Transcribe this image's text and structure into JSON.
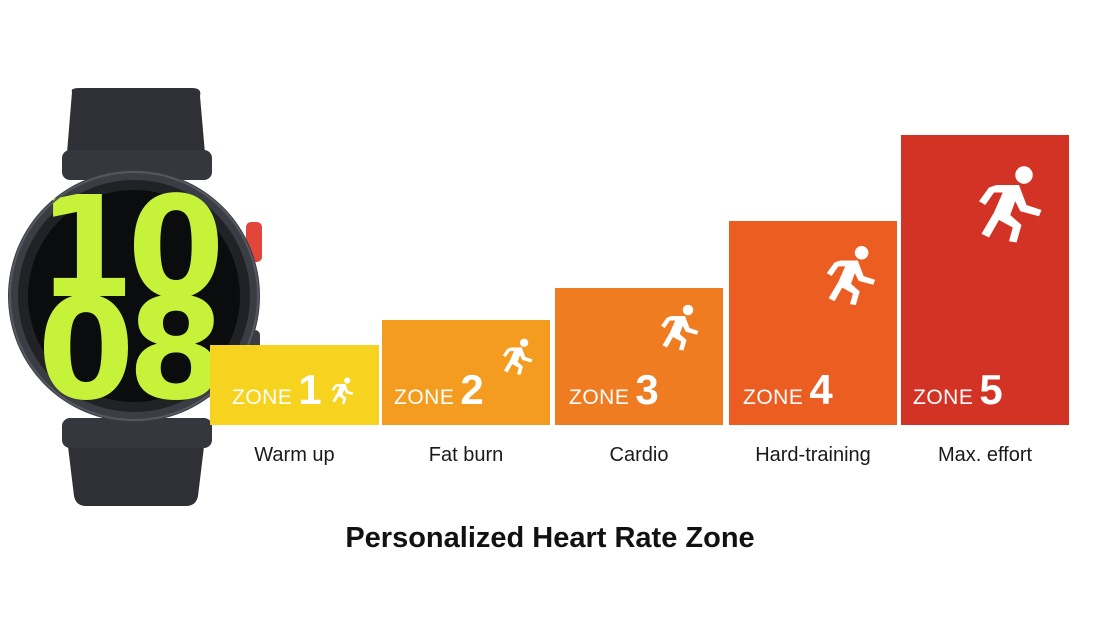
{
  "zones": [
    {
      "word": "ZONE",
      "number": "1",
      "name": "Warm up",
      "color": "#f5d31f",
      "level": 1
    },
    {
      "word": "ZONE",
      "number": "2",
      "name": "Fat burn",
      "color": "#f39c1f",
      "level": 2
    },
    {
      "word": "ZONE",
      "number": "3",
      "name": "Cardio",
      "color": "#f07c22",
      "level": 3
    },
    {
      "word": "ZONE",
      "number": "4",
      "name": "Hard-training",
      "color": "#ec5d22",
      "level": 4
    },
    {
      "word": "ZONE",
      "number": "5",
      "name": "Max. effort",
      "color": "#d33324",
      "level": 5
    }
  ],
  "title": "Personalized Heart Rate Zone",
  "watch": {
    "face_digits": [
      "1",
      "0",
      "0",
      "8"
    ],
    "face_color": "#c6f23a",
    "body_color": "#3a3d44",
    "button_color": "#e2463a",
    "icon": "smartwatch"
  },
  "icons": {
    "zone_icon": "running-person-icon"
  }
}
